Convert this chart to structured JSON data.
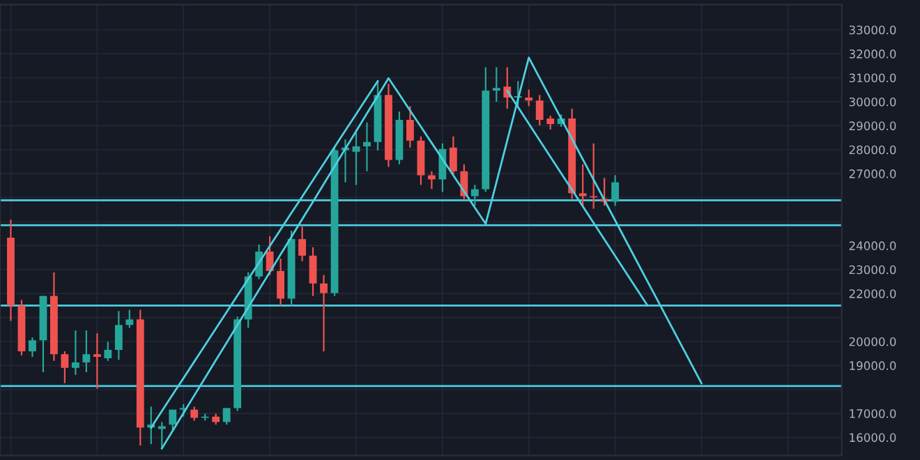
{
  "chart_data": {
    "type": "candlestick",
    "categories": [
      null,
      null,
      null,
      null,
      null,
      null,
      null,
      null,
      null,
      null,
      null,
      null,
      null,
      null,
      null,
      null,
      null,
      null,
      null,
      null,
      null,
      null,
      null,
      null,
      null,
      null,
      null,
      null,
      null,
      null,
      null,
      null,
      null,
      null,
      null,
      null,
      null,
      null,
      null,
      null,
      null,
      null,
      null,
      null,
      null,
      null,
      null,
      null,
      null,
      null,
      null,
      null,
      null,
      null,
      null,
      null,
      null,
      null,
      null,
      null,
      null,
      null,
      null,
      null,
      null,
      null,
      null,
      null,
      null,
      null,
      null,
      null,
      null,
      null,
      null,
      null,
      null
    ],
    "ohlc": [
      [
        24330,
        25080,
        20860,
        21500
      ],
      [
        21500,
        21730,
        19420,
        19590
      ],
      [
        19590,
        20170,
        19360,
        20050
      ],
      [
        20050,
        21900,
        18720,
        21900
      ],
      [
        21900,
        22880,
        19190,
        19470
      ],
      [
        19470,
        19590,
        18260,
        18900
      ],
      [
        18900,
        20460,
        18610,
        19130
      ],
      [
        19130,
        20460,
        18720,
        19470
      ],
      [
        19470,
        20340,
        18030,
        19360
      ],
      [
        19300,
        19990,
        19190,
        19650
      ],
      [
        19650,
        21270,
        19240,
        20690
      ],
      [
        20690,
        21320,
        20570,
        20920
      ],
      [
        20920,
        21320,
        15660,
        16410
      ],
      [
        16410,
        17280,
        15720,
        16530
      ],
      [
        16350,
        16640,
        15540,
        16470
      ],
      [
        16530,
        17160,
        16290,
        17160
      ],
      [
        17160,
        17390,
        16870,
        17220
      ],
      [
        17160,
        17280,
        16700,
        16820
      ],
      [
        16820,
        16990,
        16700,
        16870
      ],
      [
        16870,
        16990,
        16530,
        16640
      ],
      [
        16640,
        17220,
        16530,
        17220
      ],
      [
        17220,
        21040,
        17100,
        20920
      ],
      [
        20920,
        22890,
        20570,
        22710
      ],
      [
        22710,
        24040,
        22600,
        23750
      ],
      [
        23750,
        24390,
        22770,
        22940
      ],
      [
        22940,
        23460,
        21500,
        21790
      ],
      [
        21790,
        24620,
        21500,
        24270
      ],
      [
        24270,
        24790,
        23350,
        23580
      ],
      [
        23580,
        23930,
        21900,
        22420
      ],
      [
        22420,
        22770,
        19590,
        22020
      ],
      [
        22020,
        28140,
        21900,
        27970
      ],
      [
        27970,
        28430,
        26640,
        28090
      ],
      [
        27910,
        28840,
        26530,
        28140
      ],
      [
        28140,
        29130,
        27100,
        28320
      ],
      [
        28320,
        30860,
        27970,
        30280
      ],
      [
        30280,
        30750,
        27280,
        27570
      ],
      [
        27570,
        29590,
        27390,
        29240
      ],
      [
        29240,
        29820,
        28090,
        28380
      ],
      [
        28380,
        28550,
        26530,
        26930
      ],
      [
        26930,
        27100,
        26360,
        26760
      ],
      [
        26760,
        28260,
        26240,
        28030
      ],
      [
        28090,
        28550,
        26930,
        27100
      ],
      [
        27100,
        27390,
        25890,
        26060
      ],
      [
        26060,
        26530,
        25660,
        26350
      ],
      [
        26350,
        31440,
        26240,
        30460
      ],
      [
        30460,
        31440,
        30000,
        30570
      ],
      [
        30630,
        31440,
        29710,
        30170
      ],
      [
        30170,
        30860,
        29820,
        30230
      ],
      [
        30170,
        30510,
        29820,
        30050
      ],
      [
        30050,
        30280,
        29010,
        29240
      ],
      [
        29300,
        29420,
        28840,
        29070
      ],
      [
        29070,
        29470,
        28950,
        29300
      ],
      [
        29300,
        29710,
        25950,
        26180
      ],
      [
        26180,
        27390,
        25660,
        26060
      ],
      [
        26060,
        28260,
        25540,
        26010
      ],
      [
        25950,
        26820,
        25660,
        25830
      ],
      [
        25830,
        26930,
        25660,
        26640
      ],
      null,
      null,
      null,
      null,
      null,
      null,
      null,
      null,
      null,
      null,
      null,
      null,
      null,
      null,
      null,
      null,
      null,
      null,
      null,
      null
    ],
    "series": [
      {
        "type": "line",
        "color": "#4dd0e1",
        "values": [
          null,
          null,
          null,
          null,
          null,
          null,
          null,
          null,
          null,
          null,
          null,
          null,
          null,
          null,
          15540,
          16280,
          17010,
          17750,
          18480,
          19220,
          19950,
          20690,
          21420,
          22160,
          22890,
          23630,
          24360,
          25100,
          25830,
          26570,
          27300,
          28040,
          28770,
          29510,
          30240,
          30980,
          30310,
          29630,
          28960,
          28280,
          27610,
          26930,
          26260,
          25580,
          24910,
          26640,
          28380,
          30110,
          31840,
          30990,
          30140,
          29290,
          28450,
          27600,
          26750,
          25900,
          25050,
          24200,
          23350,
          22500,
          21660,
          20810,
          19960,
          19110,
          18260,
          null,
          null,
          null,
          null,
          null,
          null,
          null,
          null,
          null,
          null,
          null,
          null
        ]
      },
      {
        "type": "line",
        "color": "#4dd0e1",
        "values": [
          null,
          null,
          null,
          null,
          null,
          null,
          null,
          null,
          null,
          null,
          null,
          null,
          null,
          16410,
          17100,
          17790,
          18470,
          19160,
          19850,
          20540,
          21230,
          21920,
          22600,
          23290,
          23980,
          24670,
          25360,
          26040,
          26730,
          27420,
          28110,
          28800,
          29480,
          30170,
          30860,
          null,
          null,
          null,
          null,
          null,
          null,
          null,
          null,
          null,
          null,
          null,
          null,
          null,
          null,
          null,
          null,
          null,
          null,
          null,
          null,
          null,
          null,
          null,
          null,
          null,
          null,
          null,
          null,
          null,
          null,
          null,
          null,
          null,
          null,
          null,
          null,
          null,
          null,
          null,
          null,
          null,
          null
        ]
      },
      {
        "type": "line",
        "color": "#4dd0e1",
        "values": [
          null,
          null,
          null,
          null,
          null,
          null,
          null,
          null,
          null,
          null,
          null,
          null,
          null,
          null,
          null,
          null,
          null,
          null,
          null,
          null,
          null,
          null,
          null,
          null,
          null,
          null,
          null,
          null,
          null,
          null,
          null,
          null,
          null,
          null,
          null,
          null,
          null,
          null,
          null,
          null,
          null,
          null,
          null,
          null,
          null,
          null,
          30460,
          29770,
          29080,
          28390,
          27700,
          27010,
          26330,
          25640,
          24950,
          24260,
          23570,
          22880,
          22190,
          21500,
          null,
          null,
          null,
          null,
          null,
          null,
          null,
          null,
          null,
          null,
          null,
          null,
          null,
          null,
          null,
          null,
          null
        ]
      }
    ],
    "ref_lines": [
      {
        "axis": "y",
        "value": 25890,
        "color": "#4dd0e1"
      },
      {
        "axis": "y",
        "value": 24850,
        "color": "#4dd0e1"
      },
      {
        "axis": "y",
        "value": 21500,
        "color": "#4dd0e1"
      },
      {
        "axis": "y",
        "value": 18140,
        "color": "#4dd0e1"
      }
    ],
    "ylim": [
      15250,
      34050
    ],
    "yticks": [
      {
        "value": 16000,
        "label": "16000.0"
      },
      {
        "value": 17000,
        "label": "17000.0"
      },
      {
        "value": 18000,
        "label": null
      },
      {
        "value": 19000,
        "label": "19000.0"
      },
      {
        "value": 20000,
        "label": "20000.0"
      },
      {
        "value": 21000,
        "label": null
      },
      {
        "value": 22000,
        "label": "22000.0"
      },
      {
        "value": 23000,
        "label": "23000.0"
      },
      {
        "value": 24000,
        "label": "24000.0"
      },
      {
        "value": 25000,
        "label": null
      },
      {
        "value": 26000,
        "label": null
      },
      {
        "value": 27000,
        "label": "27000.0"
      },
      {
        "value": 28000,
        "label": "28000.0"
      },
      {
        "value": 29000,
        "label": "29000.0"
      },
      {
        "value": 30000,
        "label": "30000.0"
      },
      {
        "value": 31000,
        "label": "31000.0"
      },
      {
        "value": 32000,
        "label": "32000.0"
      },
      {
        "value": 33000,
        "label": "33000.0"
      }
    ],
    "grid": true,
    "tick_labels": "y"
  }
}
